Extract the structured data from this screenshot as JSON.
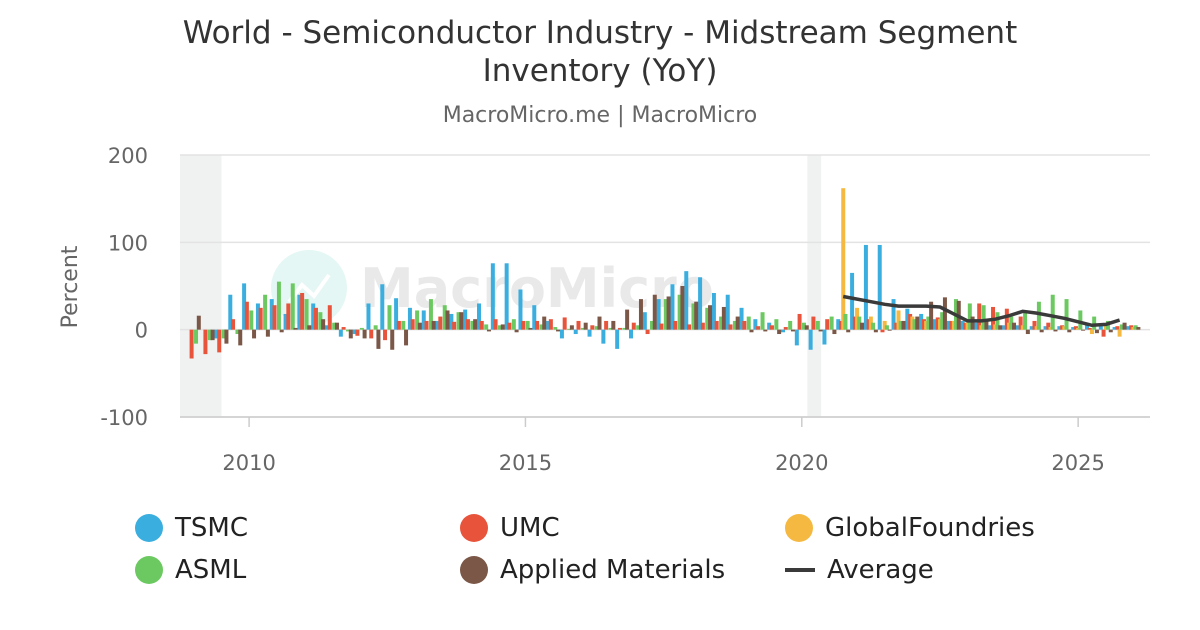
{
  "title_lines": [
    "World - Semiconductor Industry - Midstream Segment",
    "Inventory (YoY)"
  ],
  "subtitle": "MacroMicro.me | MacroMicro",
  "watermark": "MacroMicro",
  "chart_data": {
    "type": "bar",
    "title": "World - Semiconductor Industry - Midstream Segment Inventory (YoY)",
    "subtitle": "MacroMicro.me | MacroMicro",
    "ylabel": "Percent",
    "xlabel": "",
    "ylim": [
      -100,
      200
    ],
    "yticks": [
      200,
      100,
      0,
      -100
    ],
    "xlim": [
      2008.75,
      2026.3
    ],
    "xticks": [
      2010,
      2015,
      2020,
      2025
    ],
    "grid": true,
    "legend_position": "bottom",
    "shaded_periods": [
      [
        2008.75,
        2009.5
      ],
      [
        2020.1,
        2020.35
      ]
    ],
    "series": [
      {
        "name": "TSMC",
        "type": "bar",
        "color": "#3aaedf",
        "offset": -0.09,
        "x": [
          2009.5,
          2009.75,
          2010.0,
          2010.25,
          2010.5,
          2010.75,
          2011.0,
          2011.25,
          2011.5,
          2011.75,
          2012.0,
          2012.25,
          2012.5,
          2012.75,
          2013.0,
          2013.25,
          2013.5,
          2013.75,
          2014.0,
          2014.25,
          2014.5,
          2014.75,
          2015.0,
          2015.25,
          2015.5,
          2015.75,
          2016.0,
          2016.25,
          2016.5,
          2016.75,
          2017.0,
          2017.25,
          2017.5,
          2017.75,
          2018.0,
          2018.25,
          2018.5,
          2018.75,
          2019.0,
          2019.25,
          2019.5,
          2019.75,
          2020.0,
          2020.25,
          2020.5,
          2020.75,
          2021.0,
          2021.25,
          2021.5,
          2021.75,
          2022.0,
          2022.25,
          2022.5,
          2022.75,
          2023.0,
          2023.25,
          2023.5,
          2023.75,
          2024.0,
          2024.25,
          2024.5,
          2024.75,
          2025.0,
          2025.25,
          2025.5,
          2025.75,
          2026.0
        ],
        "values": [
          -10,
          40,
          53,
          30,
          35,
          18,
          40,
          30,
          5,
          -8,
          -5,
          30,
          52,
          36,
          25,
          22,
          10,
          18,
          23,
          30,
          76,
          76,
          46,
          28,
          10,
          -10,
          -5,
          -8,
          -16,
          -22,
          -10,
          20,
          35,
          52,
          67,
          60,
          42,
          40,
          25,
          12,
          8,
          -3,
          -18,
          -23,
          -17,
          12,
          65,
          97,
          97,
          35,
          24,
          18,
          12,
          10,
          10,
          8,
          5,
          5,
          5,
          4,
          4,
          4,
          3,
          6,
          7,
          3,
          4
        ]
      },
      {
        "name": "UMC",
        "type": "bar",
        "color": "#e8543b",
        "offset": -0.04,
        "x": [
          2009.0,
          2009.25,
          2009.5,
          2009.75,
          2010.0,
          2010.25,
          2010.5,
          2010.75,
          2011.0,
          2011.25,
          2011.5,
          2011.75,
          2012.0,
          2012.25,
          2012.5,
          2012.75,
          2013.0,
          2013.25,
          2013.5,
          2013.75,
          2014.0,
          2014.25,
          2014.5,
          2014.75,
          2015.0,
          2015.25,
          2015.5,
          2015.75,
          2016.0,
          2016.25,
          2016.5,
          2016.75,
          2017.0,
          2017.25,
          2017.5,
          2017.75,
          2018.0,
          2018.25,
          2018.5,
          2018.75,
          2019.0,
          2019.25,
          2019.5,
          2019.75,
          2020.0,
          2020.25,
          2020.5,
          2020.75,
          2021.0,
          2021.25,
          2021.5,
          2021.75,
          2022.0,
          2022.25,
          2022.5,
          2022.75,
          2023.0,
          2023.25,
          2023.5,
          2023.75,
          2024.0,
          2024.25,
          2024.5,
          2024.75,
          2025.0,
          2025.25,
          2025.5,
          2025.75,
          2026.0
        ],
        "values": [
          -33,
          -28,
          -26,
          12,
          32,
          25,
          28,
          30,
          42,
          25,
          28,
          3,
          -7,
          -10,
          -12,
          10,
          12,
          10,
          15,
          9,
          12,
          10,
          12,
          8,
          10,
          10,
          12,
          14,
          10,
          5,
          10,
          2,
          8,
          -5,
          7,
          10,
          6,
          8,
          10,
          6,
          10,
          4,
          5,
          3,
          18,
          15,
          12,
          10,
          15,
          12,
          -3,
          8,
          18,
          12,
          14,
          10,
          8,
          30,
          26,
          24,
          15,
          10,
          8,
          5,
          4,
          2,
          -8,
          4,
          5
        ]
      },
      {
        "name": "GlobalFoundries",
        "type": "bar",
        "color": "#f5b942",
        "offset": 0.0,
        "x": [
          2020.75,
          2021.0,
          2021.25,
          2021.5,
          2021.75,
          2022.0,
          2022.25,
          2022.5,
          2022.75,
          2023.0,
          2023.25,
          2023.5,
          2023.75,
          2024.0,
          2024.25,
          2024.5,
          2024.75,
          2025.0,
          2025.25,
          2025.5,
          2025.75,
          2026.0
        ],
        "values": [
          162,
          25,
          15,
          10,
          22,
          15,
          10,
          12,
          10,
          8,
          5,
          6,
          8,
          5,
          4,
          3,
          4,
          2,
          -5,
          5,
          -8,
          3
        ]
      },
      {
        "name": "ASML",
        "type": "bar",
        "color": "#6cc961",
        "offset": 0.04,
        "x": [
          2009.0,
          2009.25,
          2009.5,
          2009.75,
          2010.0,
          2010.25,
          2010.5,
          2010.75,
          2011.0,
          2011.25,
          2011.5,
          2011.75,
          2012.0,
          2012.25,
          2012.5,
          2012.75,
          2013.0,
          2013.25,
          2013.5,
          2013.75,
          2014.0,
          2014.25,
          2014.5,
          2014.75,
          2015.0,
          2015.25,
          2015.5,
          2015.75,
          2016.0,
          2016.25,
          2016.5,
          2016.75,
          2017.0,
          2017.25,
          2017.5,
          2017.75,
          2018.0,
          2018.25,
          2018.5,
          2018.75,
          2019.0,
          2019.25,
          2019.5,
          2019.75,
          2020.0,
          2020.25,
          2020.5,
          2020.75,
          2021.0,
          2021.25,
          2021.5,
          2021.75,
          2022.0,
          2022.25,
          2022.5,
          2022.75,
          2023.0,
          2023.25,
          2023.5,
          2023.75,
          2024.0,
          2024.25,
          2024.5,
          2024.75,
          2025.0,
          2025.25,
          2025.5,
          2025.75,
          2026.0
        ],
        "values": [
          -16,
          -12,
          -10,
          -5,
          22,
          40,
          55,
          53,
          35,
          20,
          8,
          -2,
          2,
          5,
          28,
          10,
          22,
          35,
          28,
          20,
          10,
          6,
          5,
          12,
          10,
          6,
          3,
          1,
          2,
          4,
          2,
          2,
          5,
          10,
          35,
          40,
          30,
          25,
          15,
          10,
          15,
          20,
          12,
          10,
          8,
          10,
          15,
          18,
          15,
          8,
          5,
          10,
          12,
          15,
          20,
          35,
          30,
          28,
          20,
          15,
          22,
          32,
          40,
          35,
          22,
          15,
          10,
          6,
          5
        ]
      },
      {
        "name": "Applied Materials",
        "type": "bar",
        "color": "#7b5747",
        "offset": 0.09,
        "x": [
          2009.0,
          2009.25,
          2009.5,
          2009.75,
          2010.0,
          2010.25,
          2010.5,
          2010.75,
          2011.0,
          2011.25,
          2011.5,
          2011.75,
          2012.0,
          2012.25,
          2012.5,
          2012.75,
          2013.0,
          2013.25,
          2013.5,
          2013.75,
          2014.0,
          2014.25,
          2014.5,
          2014.75,
          2015.0,
          2015.25,
          2015.5,
          2015.75,
          2016.0,
          2016.25,
          2016.5,
          2016.75,
          2017.0,
          2017.25,
          2017.5,
          2017.75,
          2018.0,
          2018.25,
          2018.5,
          2018.75,
          2019.0,
          2019.25,
          2019.5,
          2019.75,
          2020.0,
          2020.25,
          2020.5,
          2020.75,
          2021.0,
          2021.25,
          2021.5,
          2021.75,
          2022.0,
          2022.25,
          2022.5,
          2022.75,
          2023.0,
          2023.25,
          2023.5,
          2023.75,
          2024.0,
          2024.25,
          2024.5,
          2024.75,
          2025.0,
          2025.25,
          2025.5,
          2025.75,
          2026.0
        ],
        "values": [
          16,
          -12,
          -16,
          -18,
          -10,
          -8,
          -3,
          2,
          5,
          12,
          8,
          -10,
          -10,
          -22,
          -23,
          -18,
          8,
          10,
          22,
          20,
          12,
          -2,
          6,
          -3,
          2,
          15,
          -2,
          5,
          8,
          15,
          10,
          23,
          35,
          40,
          38,
          50,
          32,
          28,
          26,
          15,
          -3,
          -2,
          -5,
          -2,
          5,
          -2,
          -5,
          -3,
          8,
          -3,
          -1,
          10,
          15,
          32,
          37,
          33,
          15,
          10,
          5,
          8,
          -5,
          -3,
          -2,
          -3,
          -1,
          -4,
          -3,
          8,
          3
        ]
      },
      {
        "name": "Average",
        "type": "line",
        "color": "#3a3a3a",
        "x": [
          2020.75,
          2021.0,
          2021.25,
          2021.5,
          2021.75,
          2022.0,
          2022.25,
          2022.5,
          2022.75,
          2023.0,
          2023.25,
          2023.5,
          2023.75,
          2024.0,
          2024.25,
          2024.5,
          2024.75,
          2025.0,
          2025.25,
          2025.5,
          2025.75
        ],
        "values": [
          38,
          35,
          32,
          29,
          27,
          27,
          27,
          26,
          18,
          10,
          10,
          12,
          16,
          21,
          19,
          16,
          13,
          9,
          5,
          6,
          11
        ]
      }
    ]
  },
  "legend": [
    {
      "name": "TSMC",
      "color": "#3aaedf",
      "kind": "dot"
    },
    {
      "name": "UMC",
      "color": "#e8543b",
      "kind": "dot"
    },
    {
      "name": "GlobalFoundries",
      "color": "#f5b942",
      "kind": "dot"
    },
    {
      "name": "ASML",
      "color": "#6cc961",
      "kind": "dot"
    },
    {
      "name": "Applied Materials",
      "color": "#7b5747",
      "kind": "dot"
    },
    {
      "name": "Average",
      "color": "#3a3a3a",
      "kind": "line"
    }
  ]
}
